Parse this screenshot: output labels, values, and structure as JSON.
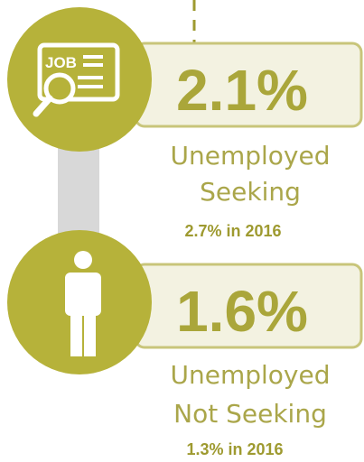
{
  "items": [
    {
      "value": "2.1%",
      "label": [
        "Unemployed",
        "Seeking"
      ],
      "comparison": "2.7% in 2016",
      "icon_text": "JOB"
    },
    {
      "value": "1.6%",
      "label": [
        "Unemployed",
        "Not Seeking"
      ],
      "comparison": "1.3% in 2016"
    }
  ]
}
